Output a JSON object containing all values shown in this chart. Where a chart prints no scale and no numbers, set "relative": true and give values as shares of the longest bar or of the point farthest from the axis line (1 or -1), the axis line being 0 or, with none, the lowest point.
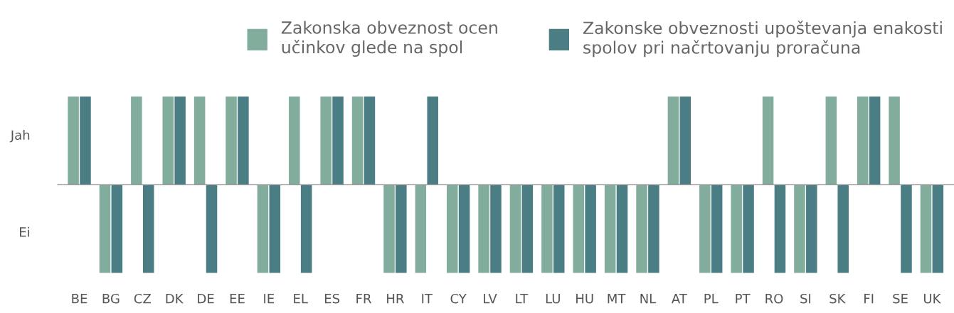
{
  "chart_data": {
    "type": "bar",
    "categories": [
      "BE",
      "BG",
      "CZ",
      "DK",
      "DE",
      "EE",
      "IE",
      "EL",
      "ES",
      "FR",
      "HR",
      "IT",
      "CY",
      "LV",
      "LT",
      "LU",
      "HU",
      "MT",
      "NL",
      "AT",
      "PL",
      "PT",
      "RO",
      "SI",
      "SK",
      "FI",
      "SE",
      "UK"
    ],
    "series": [
      {
        "name": "Zakonska obveznost ocen učinkov glede na spol",
        "color": "#82ad9c",
        "values": [
          1,
          -1,
          1,
          1,
          1,
          1,
          -1,
          1,
          1,
          1,
          -1,
          -1,
          -1,
          -1,
          -1,
          -1,
          -1,
          -1,
          -1,
          1,
          -1,
          -1,
          1,
          -1,
          1,
          1,
          1,
          -1
        ]
      },
      {
        "name": "Zakonske obveznosti upoštevanja enakosti spolov pri načrtovanju proračuna",
        "color": "#4a7d84",
        "values": [
          1,
          -1,
          -1,
          1,
          -1,
          1,
          -1,
          -1,
          1,
          1,
          -1,
          1,
          -1,
          -1,
          -1,
          -1,
          -1,
          -1,
          -1,
          1,
          -1,
          -1,
          -1,
          -1,
          -1,
          1,
          -1,
          -1
        ]
      }
    ],
    "relative": true,
    "annotations": [
      "Jah",
      "Ei"
    ],
    "legend": "top",
    "grid": false
  }
}
